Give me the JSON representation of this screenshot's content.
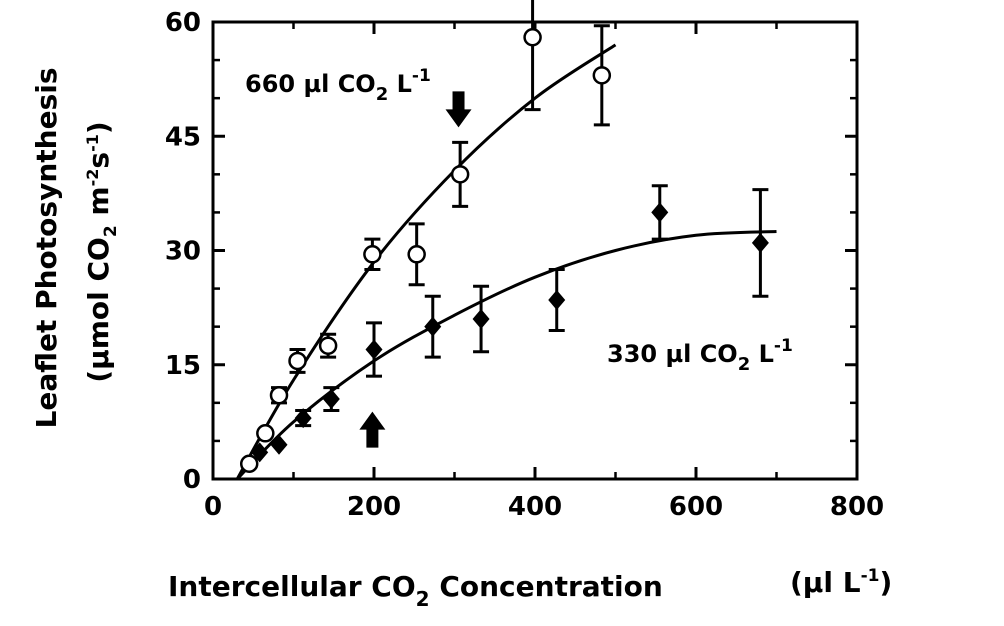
{
  "chart_data": {
    "type": "scatter",
    "title": "",
    "xlabel": "Intercellular CO",
    "xlabel_sub": "2",
    "xlabel_tail": " Concentration",
    "xunit": "(µl L",
    "xunit_sup": "-1",
    "xunit_close": ")",
    "ylabel": "Leaflet Photosynthesis",
    "yunit_parts": [
      "(µmol CO",
      "2",
      " m",
      "-2",
      "s",
      "-1",
      ")"
    ],
    "xlim": [
      0,
      800
    ],
    "ylim": [
      0,
      60
    ],
    "xticks": [
      0,
      200,
      400,
      600,
      800
    ],
    "yticks": [
      0,
      15,
      30,
      45,
      60
    ],
    "grid": false,
    "series": [
      {
        "name": "660 µl CO2 L-1",
        "label_parts": [
          "660 µl CO",
          "2",
          " L",
          "-1"
        ],
        "marker": "open-circle",
        "color": "#000000",
        "points": [
          {
            "x": 45,
            "y": 2,
            "err": 0
          },
          {
            "x": 65,
            "y": 6,
            "err": 0
          },
          {
            "x": 82,
            "y": 11,
            "err": 1.0
          },
          {
            "x": 105,
            "y": 15.5,
            "err": 1.5
          },
          {
            "x": 143,
            "y": 17.5,
            "err": 1.5
          },
          {
            "x": 198,
            "y": 29.5,
            "err": 2.0
          },
          {
            "x": 253,
            "y": 29.5,
            "err": 4.0
          },
          {
            "x": 307,
            "y": 40,
            "err": 4.2
          },
          {
            "x": 397,
            "y": 58,
            "err": 9.5
          },
          {
            "x": 483,
            "y": 53,
            "err": 6.5
          }
        ],
        "fit": {
          "x": [
            30,
            100,
            200,
            300,
            400,
            500
          ],
          "y": [
            0,
            13,
            28.5,
            40.5,
            50,
            57
          ]
        },
        "arrow": {
          "x": 305,
          "y": 48,
          "direction": "down"
        }
      },
      {
        "name": "330 µl CO2 L-1",
        "label_parts": [
          "330 µl CO",
          "2",
          " L",
          "-1"
        ],
        "marker": "filled-diamond",
        "color": "#000000",
        "points": [
          {
            "x": 58,
            "y": 3.5,
            "err": 0
          },
          {
            "x": 82,
            "y": 4.5,
            "err": 0
          },
          {
            "x": 112,
            "y": 8,
            "err": 1.0
          },
          {
            "x": 147,
            "y": 10.5,
            "err": 1.5
          },
          {
            "x": 200,
            "y": 17,
            "err": 3.5
          },
          {
            "x": 273,
            "y": 20,
            "err": 4.0
          },
          {
            "x": 333,
            "y": 21,
            "err": 4.3
          },
          {
            "x": 427,
            "y": 23.5,
            "err": 4.0
          },
          {
            "x": 555,
            "y": 35,
            "err": 3.5
          },
          {
            "x": 680,
            "y": 31,
            "err": 7.0
          }
        ],
        "fit": {
          "x": [
            30,
            100,
            200,
            300,
            400,
            500,
            600,
            700
          ],
          "y": [
            0,
            7.5,
            15.5,
            21.5,
            26.5,
            30,
            32,
            32.5
          ]
        },
        "arrow": {
          "x": 198,
          "y": 7,
          "direction": "up"
        }
      }
    ]
  }
}
